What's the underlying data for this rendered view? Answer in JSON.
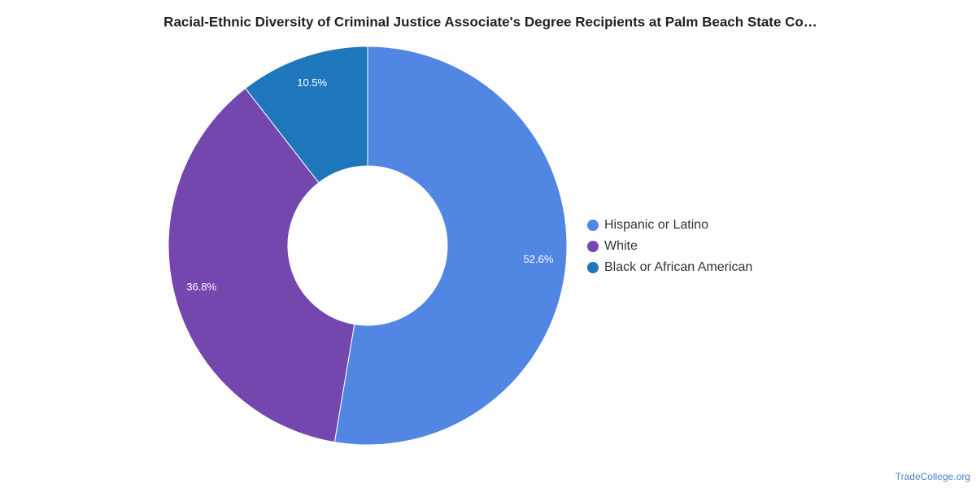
{
  "chart_data": {
    "type": "donut",
    "title": "Racial-Ethnic Diversity of Criminal Justice Associate's Degree Recipients at Palm Beach State Co…",
    "categories": [
      "Hispanic or Latino",
      "White",
      "Black or African American"
    ],
    "values": [
      52.6,
      36.8,
      10.5
    ],
    "value_labels": [
      "52.6%",
      "36.8%",
      "10.5%"
    ],
    "colors": [
      "#5286e3",
      "#7447af",
      "#1f77bb"
    ],
    "legend": "right",
    "source": "TradeCollege.org"
  }
}
